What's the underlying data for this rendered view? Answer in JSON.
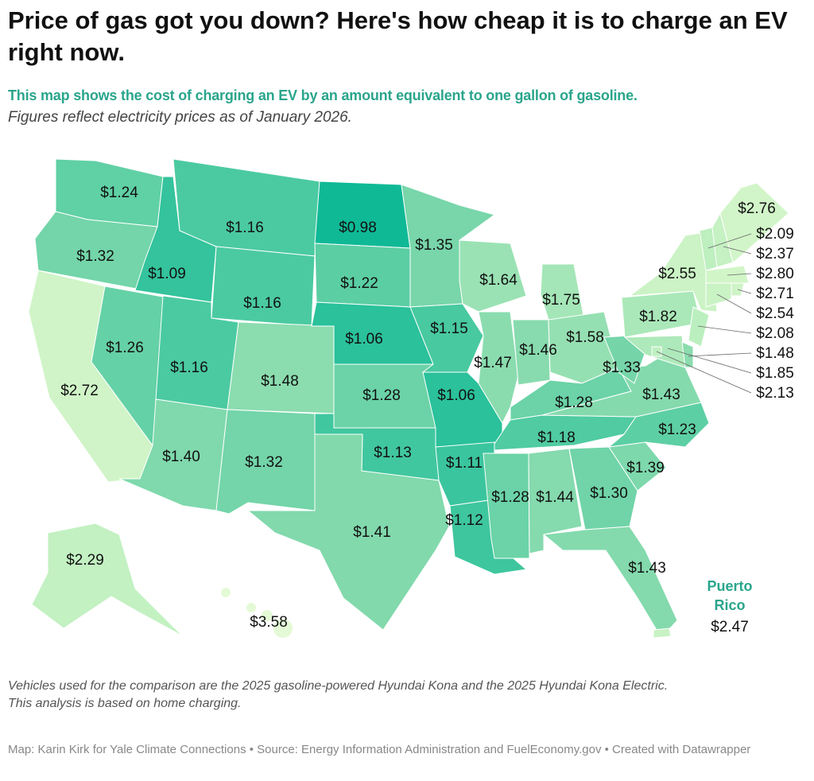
{
  "title": "Price of gas got you down? Here's how cheap it is to charge an EV right now.",
  "subtitle": "This map shows the cost of charging an EV by an amount equivalent to one gallon of gasoline.",
  "note": "Figures reflect electricity prices as of January 2026.",
  "colors": {
    "low": "#0fb996",
    "high": "#e2f8d2",
    "accent": "#2aa58c",
    "border": "#ffffff"
  },
  "map_data": {
    "type": "choropleth",
    "states": {
      "WA": "$1.24",
      "OR": "$1.32",
      "CA": "$2.72",
      "NV": "$1.26",
      "ID": "$1.09",
      "MT": "$1.16",
      "WY": "$1.16",
      "UT": "$1.16",
      "CO": "$1.48",
      "AZ": "$1.40",
      "NM": "$1.32",
      "ND": "$0.98",
      "SD": "$1.22",
      "NE": "$1.06",
      "KS": "$1.28",
      "OK": "$1.13",
      "TX": "$1.41",
      "MN": "$1.35",
      "IA": "$1.15",
      "MO": "$1.06",
      "AR": "$1.11",
      "LA": "$1.12",
      "WI": "$1.64",
      "MI": "$1.75",
      "IL": "$1.47",
      "IN": "$1.46",
      "OH": "$1.58",
      "KY": "$1.28",
      "TN": "$1.18",
      "MS": "$1.28",
      "AL": "$1.44",
      "GA": "$1.30",
      "FL": "$1.43",
      "SC": "$1.39",
      "NC": "$1.23",
      "VA": "$1.43",
      "WV": "$1.33",
      "PA": "$1.82",
      "NY": "$2.55",
      "NJ": "$2.08",
      "MD": "$1.85",
      "DC": "$2.13",
      "DE": "$1.48",
      "VT": "$2.09",
      "NH": "$2.37",
      "ME": "$2.76",
      "MA": "$2.80",
      "RI": "$2.71",
      "CT": "$2.54",
      "AK": "$2.29",
      "HI": "$3.58",
      "PR": "$2.47"
    },
    "pr_label": "Puerto Rico"
  },
  "footnotes": [
    "Vehicles used for the comparison are the 2025 gasoline-powered Hyundai Kona and the 2025 Hyundai Kona Electric.",
    "This analysis is based on home charging."
  ],
  "credit": "Map: Karin Kirk for Yale Climate Connections • Source: Energy Information Administration and FuelEconomy.gov • Created with Datawrapper"
}
